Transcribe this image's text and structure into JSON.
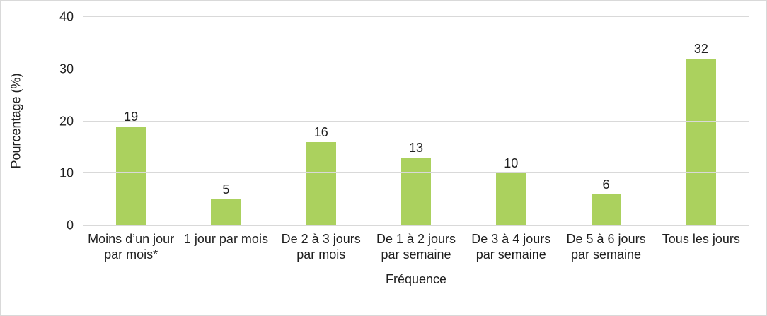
{
  "chart_data": {
    "type": "bar",
    "categories": [
      "Moins d’un jour par mois*",
      "1 jour par mois",
      "De 2 à 3 jours par mois",
      "De 1 à 2 jours par semaine",
      "De 3 à 4 jours par semaine",
      "De 5 à 6 jours par semaine",
      "Tous les jours"
    ],
    "values": [
      19,
      5,
      16,
      13,
      10,
      6,
      32
    ],
    "title": "",
    "xlabel": "Fréquence",
    "ylabel": "Pourcentage (%)",
    "ylim": [
      0,
      40
    ],
    "yticks": [
      0,
      10,
      20,
      30,
      40
    ],
    "grid": "horizontal",
    "legend": "none",
    "data_labels": true,
    "colors": {
      "bar": "#abd15e",
      "gridline": "#d9d9d9",
      "border": "#d9d9d9",
      "text": "#1f1f1f"
    }
  }
}
